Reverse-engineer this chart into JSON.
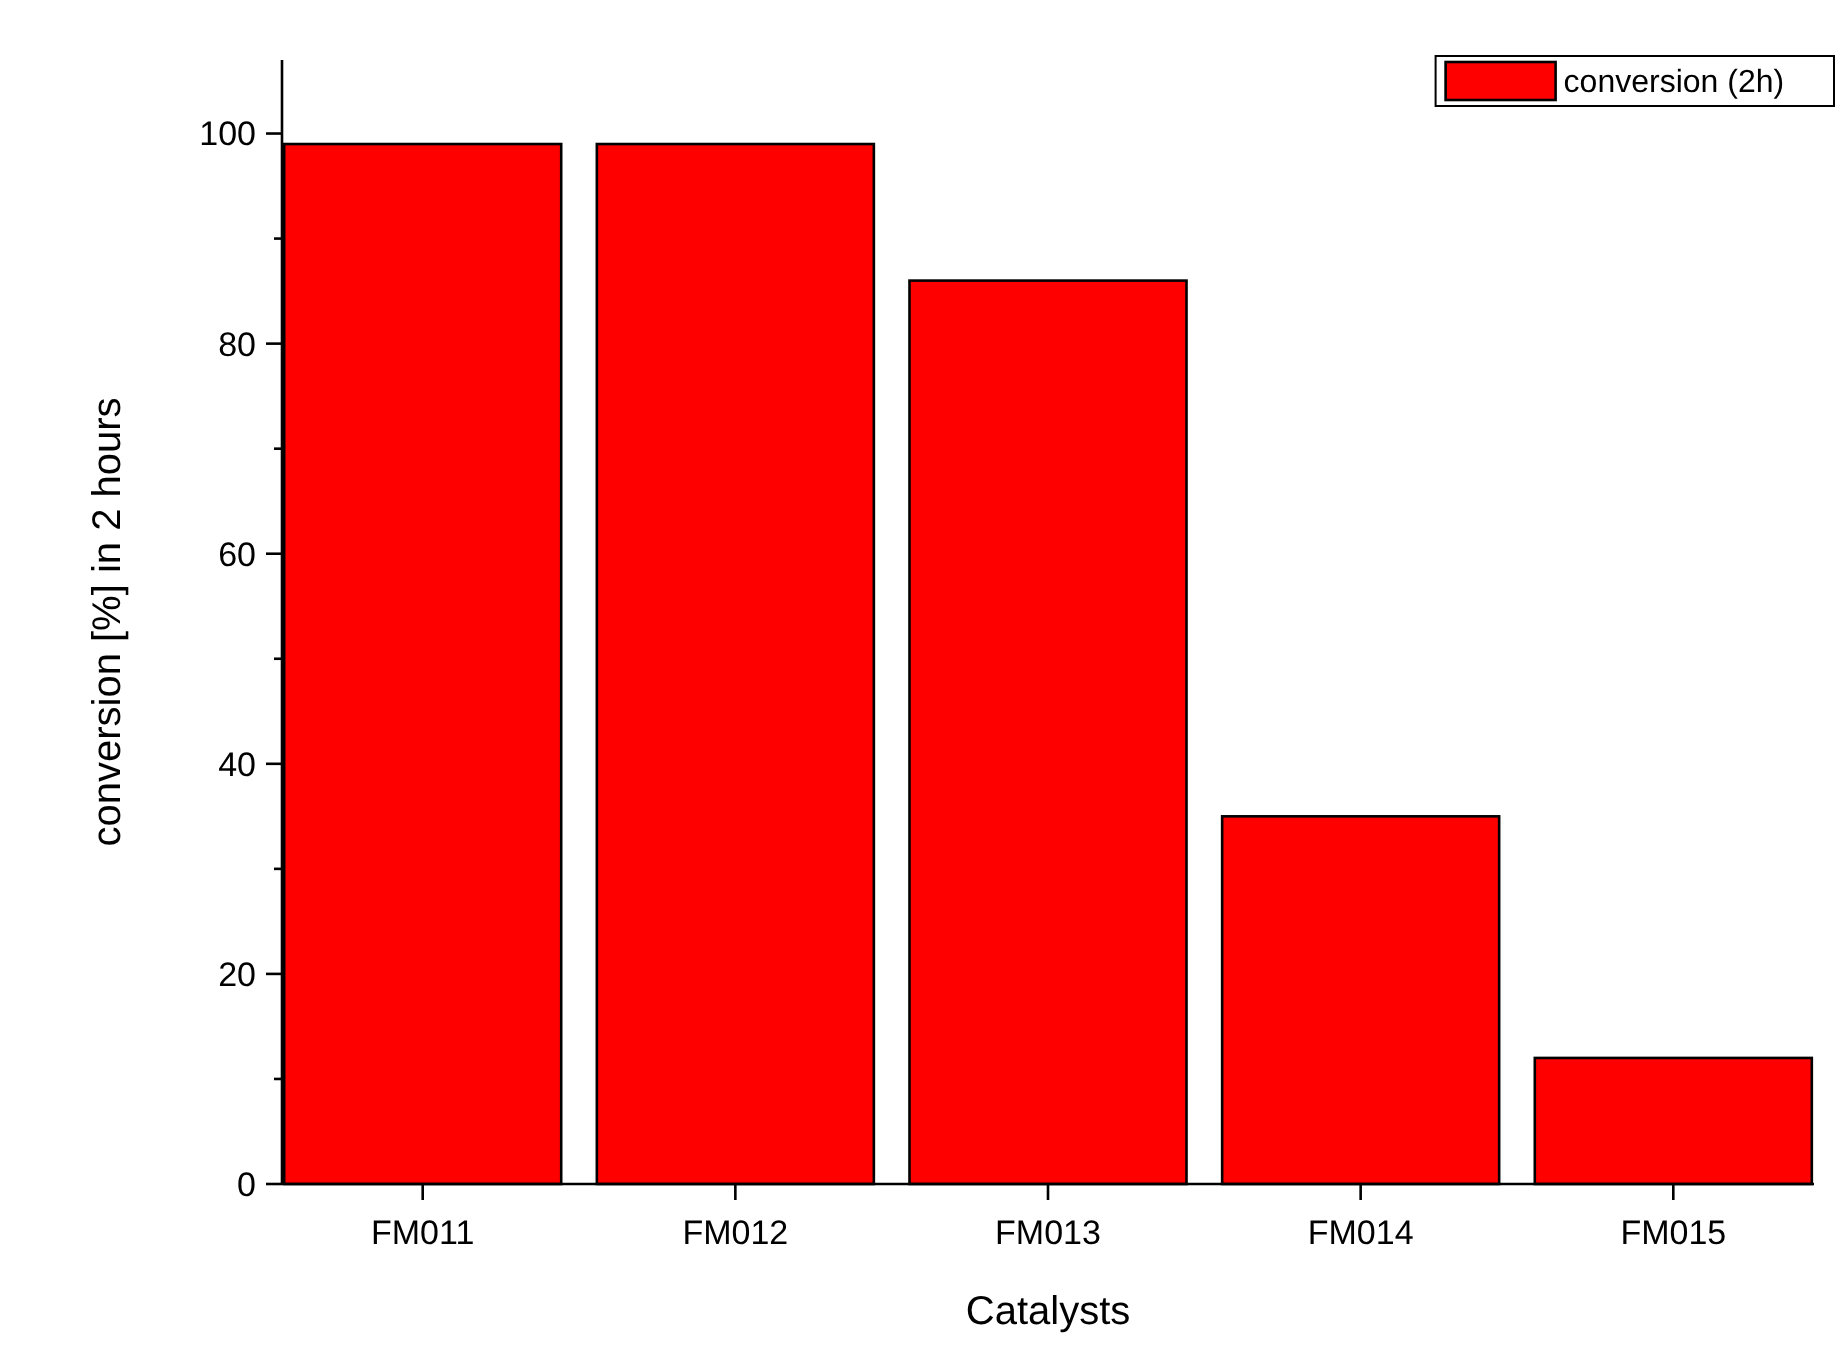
{
  "chart_data": {
    "type": "bar",
    "xlabel": "Catalysts",
    "ylabel": "conversion [%] in 2 hours",
    "categories": [
      "FM011",
      "FM012",
      "FM013",
      "FM014",
      "FM015"
    ],
    "series": [
      {
        "name": "conversion (2h)",
        "color": "#ff0000",
        "values": [
          99,
          99,
          86,
          35,
          12
        ]
      }
    ],
    "ylim": [
      0,
      107
    ],
    "yticks": [
      0,
      20,
      40,
      60,
      80,
      100
    ],
    "grid": false,
    "legend": "top right"
  }
}
